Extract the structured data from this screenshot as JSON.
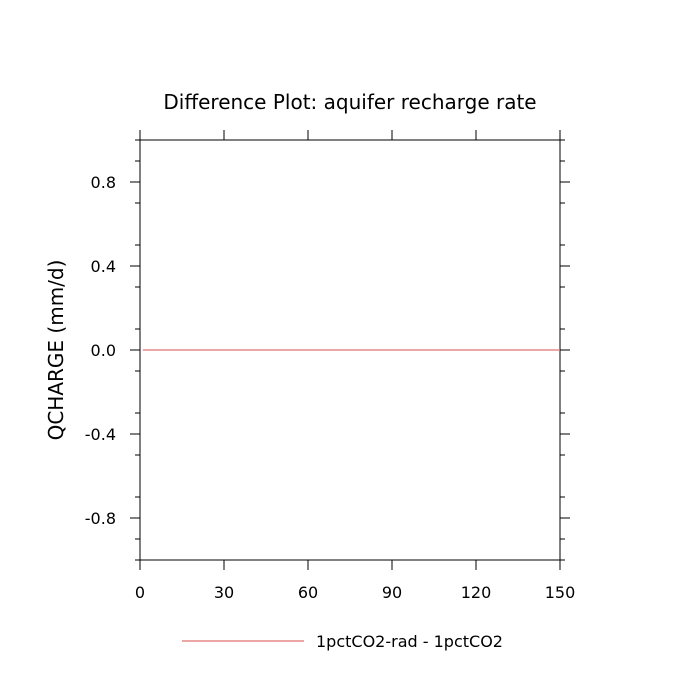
{
  "chart_data": {
    "type": "line",
    "title": "Difference Plot: aquifer recharge rate",
    "xlabel": "",
    "ylabel": "QCHARGE  (mm/d)",
    "xlim": [
      0,
      150
    ],
    "ylim": [
      -1,
      1
    ],
    "x_ticks": [
      0,
      30,
      60,
      90,
      120,
      150
    ],
    "x_tick_labels": [
      "0",
      "30",
      "60",
      "90",
      "120",
      "150"
    ],
    "y_ticks": [
      0.8,
      0.4,
      0.0,
      -0.4,
      -0.8
    ],
    "y_tick_labels": [
      "0.8",
      "0.4",
      "0.0",
      "-0.4",
      "-0.8"
    ],
    "grid": false,
    "legend_position": "bottom",
    "series": [
      {
        "name": "1pctCO2-rad - 1pctCO2",
        "color": "#e07070",
        "x": [
          1,
          150
        ],
        "y": [
          0,
          0
        ]
      }
    ]
  }
}
